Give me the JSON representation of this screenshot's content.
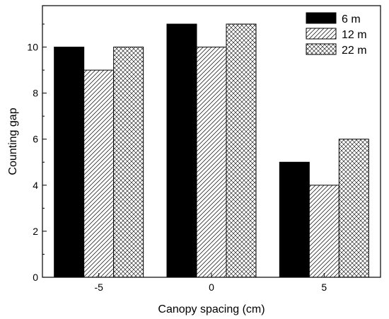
{
  "chart_data": {
    "type": "bar",
    "categories": [
      "-5",
      "0",
      "5"
    ],
    "series": [
      {
        "name": "6 m",
        "values": [
          10,
          11,
          5
        ],
        "pattern": "solid",
        "color": "#000000"
      },
      {
        "name": "12 m",
        "values": [
          9,
          10,
          4
        ],
        "pattern": "diagonal-hatch",
        "color": "#000000"
      },
      {
        "name": "22 m",
        "values": [
          10,
          11,
          6
        ],
        "pattern": "cross-hatch",
        "color": "#000000"
      }
    ],
    "title": "",
    "xlabel": "Canopy spacing (cm)",
    "ylabel": "Counting gap",
    "ylim": [
      0,
      11.8
    ],
    "yticks": [
      "0",
      "2",
      "4",
      "6",
      "8",
      "10"
    ],
    "grid": false,
    "legend_position": "top-right"
  }
}
